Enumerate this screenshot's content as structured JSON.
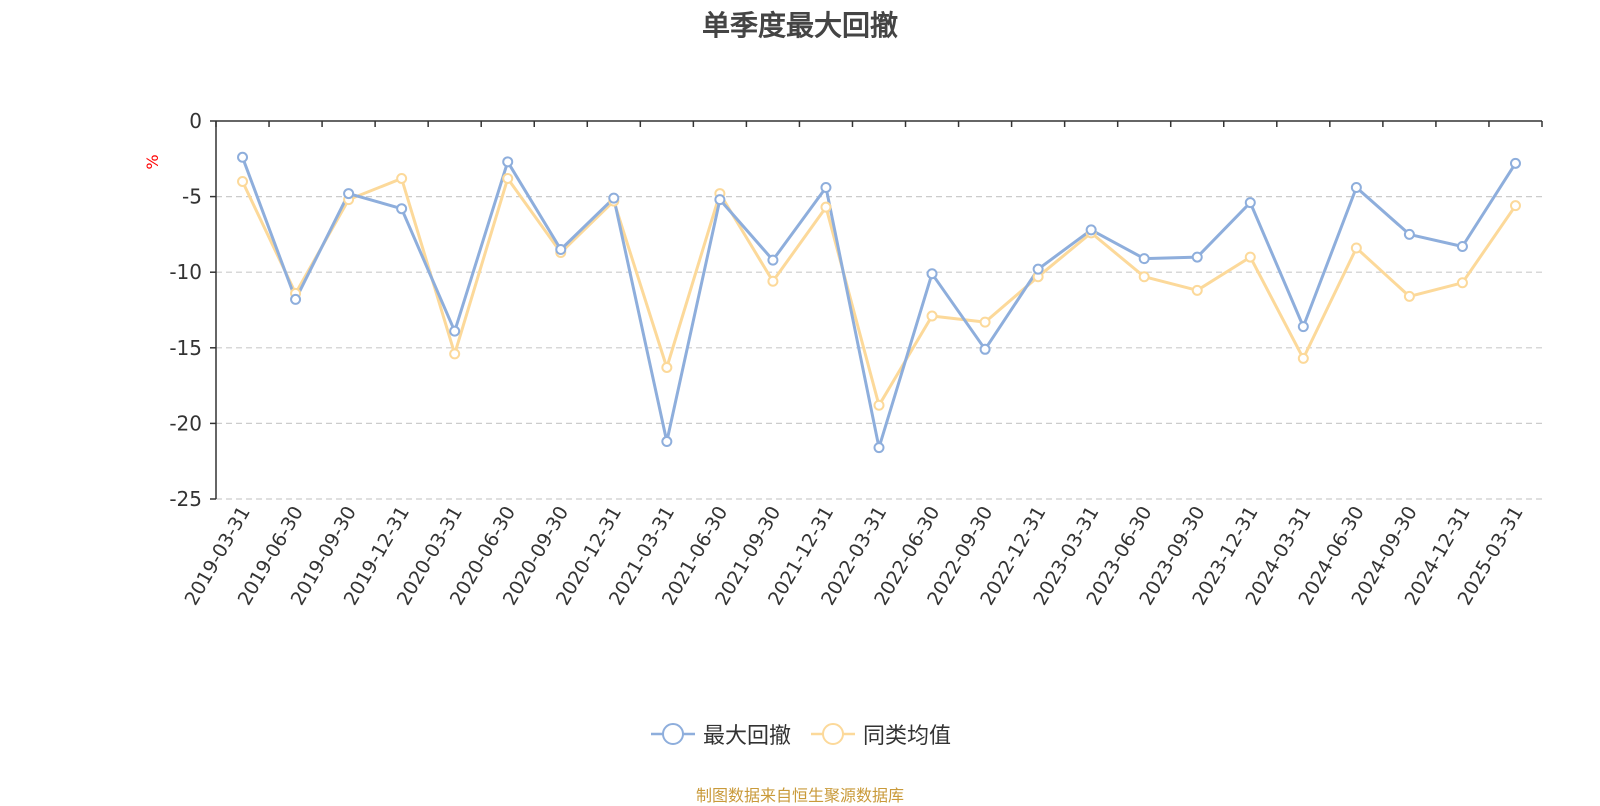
{
  "chart_data": {
    "type": "line",
    "title": "单季度最大回撤",
    "ylabel": "%",
    "ylim": [
      -25,
      0
    ],
    "yticks": [
      0,
      -5,
      -10,
      -15,
      -20,
      -25
    ],
    "grid": true,
    "legend_position": "bottom",
    "categories": [
      "2019-03-31",
      "2019-06-30",
      "2019-09-30",
      "2019-12-31",
      "2020-03-31",
      "2020-06-30",
      "2020-09-30",
      "2020-12-31",
      "2021-03-31",
      "2021-06-30",
      "2021-09-30",
      "2021-12-31",
      "2022-03-31",
      "2022-06-30",
      "2022-09-30",
      "2022-12-31",
      "2023-03-31",
      "2023-06-30",
      "2023-09-30",
      "2023-12-31",
      "2024-03-31",
      "2024-06-30",
      "2024-09-30",
      "2024-12-31",
      "2025-03-31"
    ],
    "series": [
      {
        "name": "最大回撤",
        "color": "#8eaedc",
        "values": [
          -2.4,
          -11.8,
          -4.8,
          -5.8,
          -13.9,
          -2.7,
          -8.5,
          -5.1,
          -21.2,
          -5.2,
          -9.2,
          -4.4,
          -21.6,
          -10.1,
          -15.1,
          -9.8,
          -7.2,
          -9.1,
          -9.0,
          -5.4,
          -13.6,
          -4.4,
          -7.5,
          -8.3,
          -2.8
        ]
      },
      {
        "name": "同类均值",
        "color": "#fcd99a",
        "values": [
          -4.0,
          -11.4,
          -5.2,
          -3.8,
          -15.4,
          -3.8,
          -8.7,
          -5.3,
          -16.3,
          -4.8,
          -10.6,
          -5.7,
          -18.8,
          -12.9,
          -13.3,
          -10.3,
          -7.4,
          -10.3,
          -11.2,
          -9.0,
          -15.7,
          -8.4,
          -11.6,
          -10.7,
          -5.6
        ]
      }
    ]
  },
  "footer": {
    "source": "制图数据来自恒生聚源数据库"
  }
}
